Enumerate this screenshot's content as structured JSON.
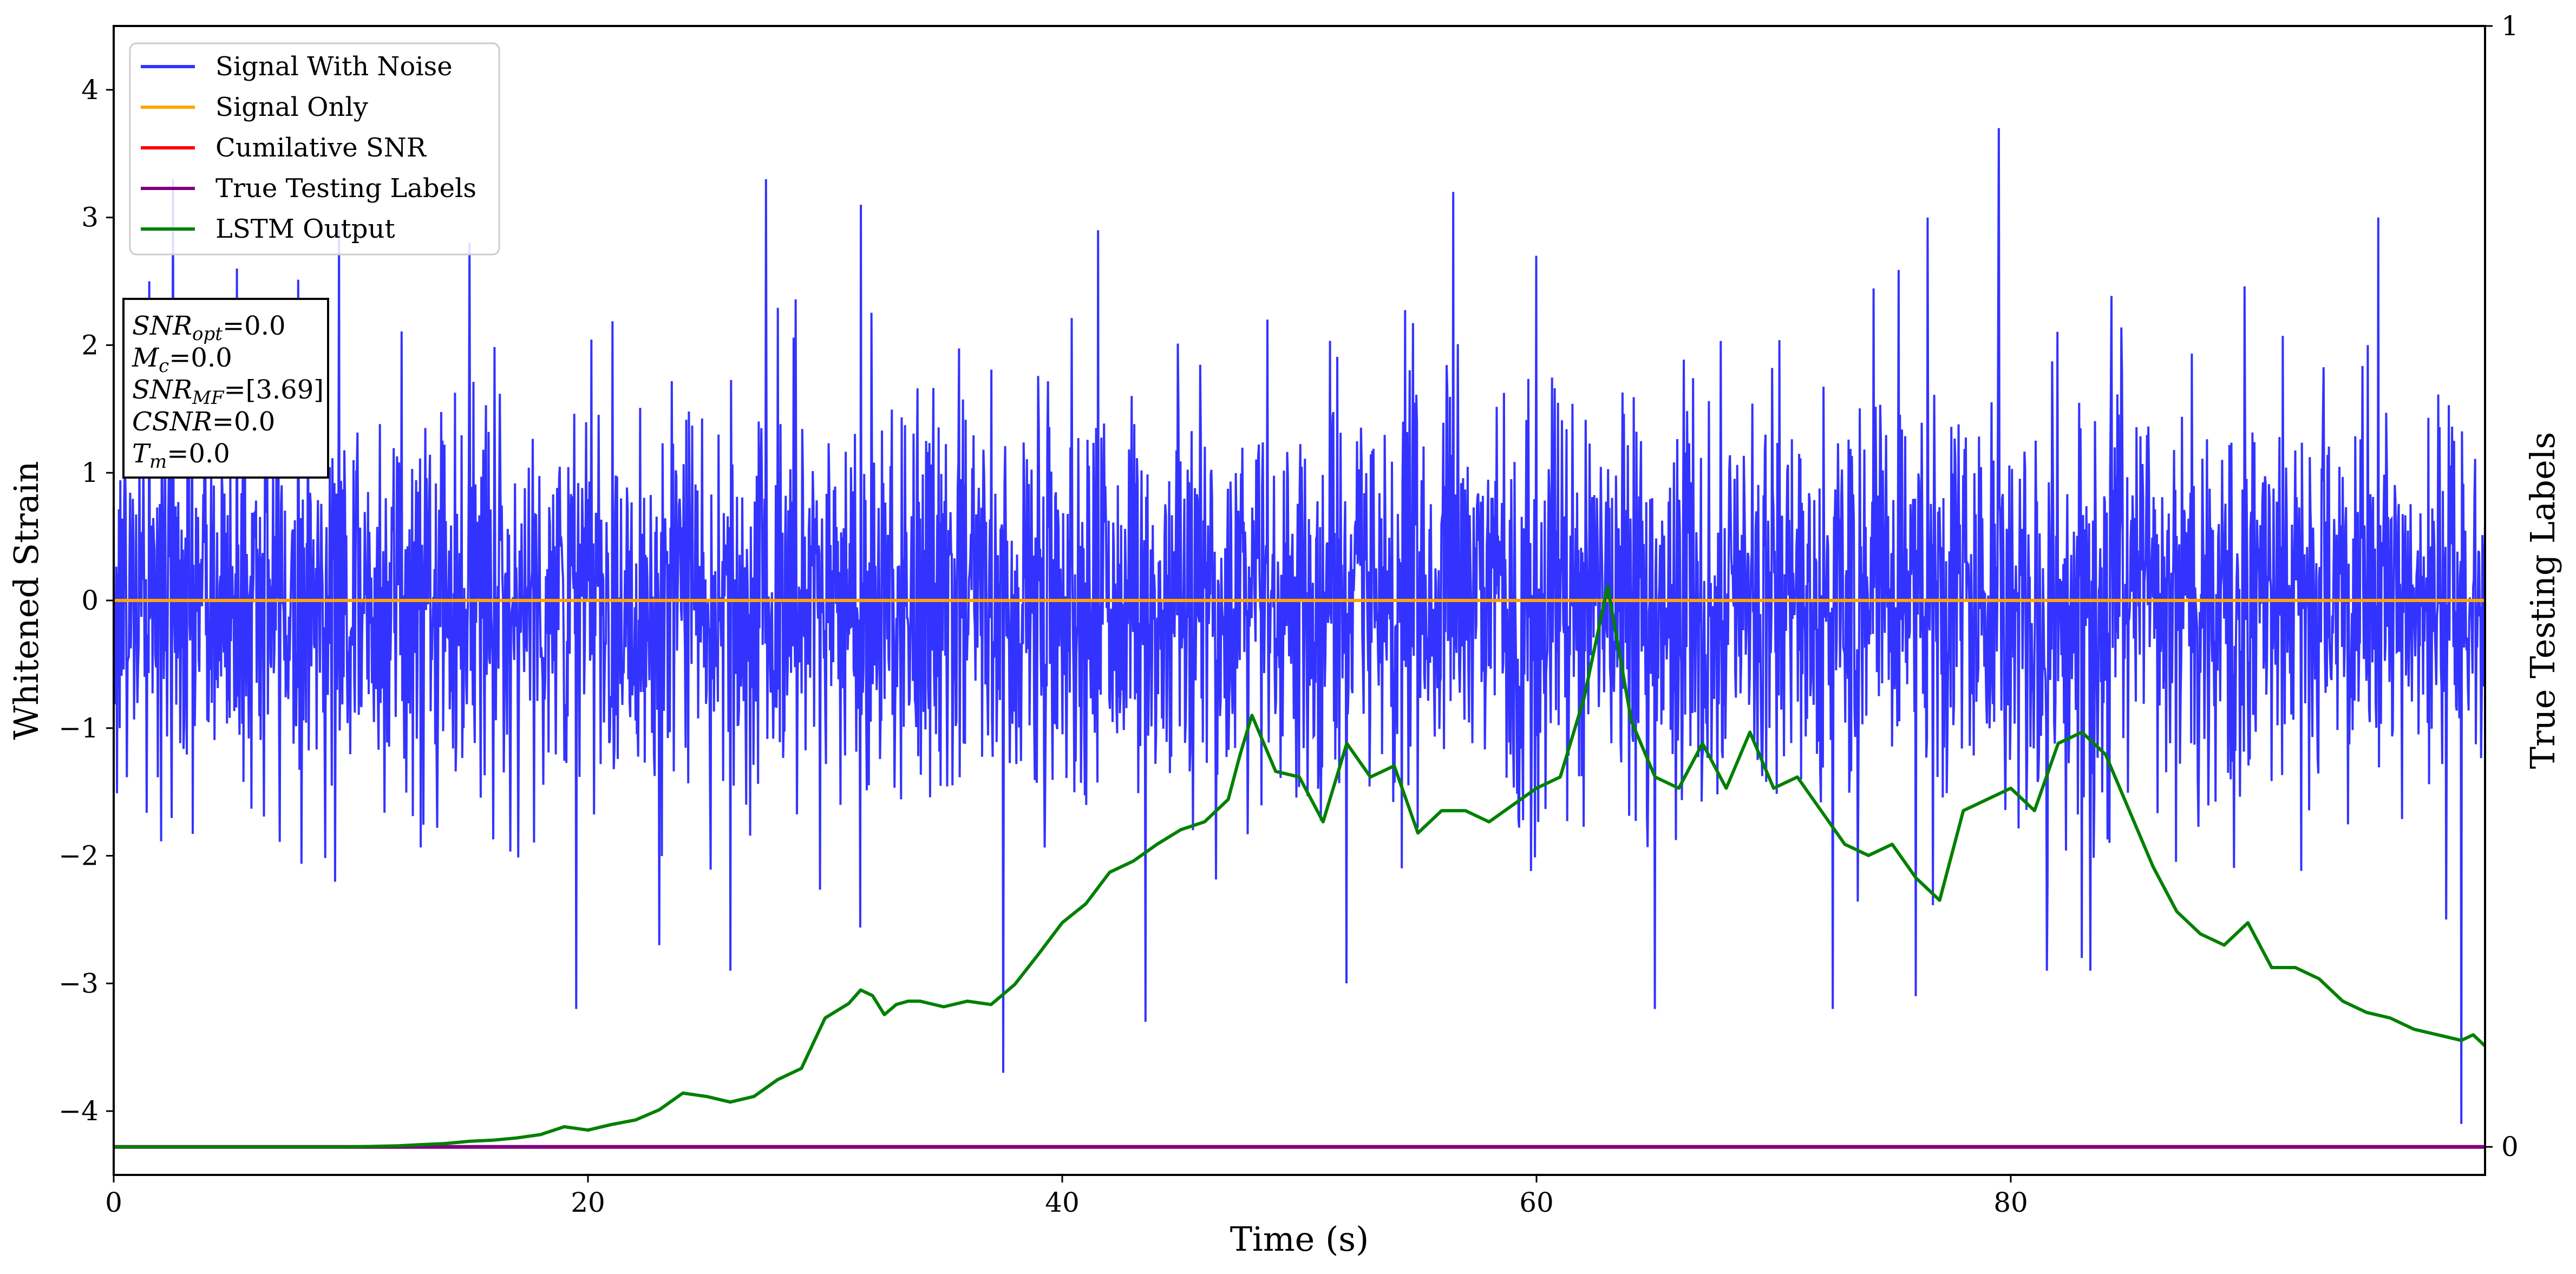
{
  "chart_data": {
    "type": "line",
    "xlabel": "Time (s)",
    "ylabel": "Whitened Strain",
    "y2label": "True Testing Labels",
    "xlim": [
      0,
      100
    ],
    "ylim": [
      -4.5,
      4.5
    ],
    "y2lim": [
      -0.025,
      1.0
    ],
    "xticks": [
      0,
      20,
      40,
      60,
      80
    ],
    "yticks": [
      -4,
      -3,
      -2,
      -1,
      0,
      1,
      2,
      3,
      4
    ],
    "y2ticks": [
      0,
      1
    ],
    "grid": false,
    "legend_position": "top-left",
    "colors": {
      "signal_with_noise": "#3333ff",
      "signal_only": "#ffa500",
      "cumulative_snr": "#ff0000",
      "true_labels": "#800080",
      "lstm_output": "#008000"
    },
    "legend": [
      "Signal With Noise",
      "Signal Only",
      "Cumilative SNR",
      "True Testing Labels",
      "LSTM Output"
    ],
    "stats_box": [
      {
        "base": "SNR",
        "sub": "opt",
        "value": "=0.0"
      },
      {
        "base": "M",
        "sub": "c",
        "value": "=0.0"
      },
      {
        "base": "SNR",
        "sub": "MF",
        "value": "=[3.69]"
      },
      {
        "base": "CSNR",
        "sub": "",
        "value": "=0.0"
      },
      {
        "base": "T",
        "sub": "m",
        "value": "=0.0"
      }
    ],
    "series": [
      {
        "name": "Signal With Noise",
        "axis": "left",
        "description": "dense whitened noise, approx. between -3.7 and 3.7",
        "x_range": [
          0,
          100
        ],
        "peak_max": 3.7,
        "peak_min": -4.1,
        "spikes": [
          [
            1.5,
            2.5
          ],
          [
            2.5,
            3.3
          ],
          [
            5.2,
            2.6
          ],
          [
            9.5,
            2.9
          ],
          [
            15,
            2.8
          ],
          [
            27.5,
            3.3
          ],
          [
            31.5,
            3.1
          ],
          [
            41.5,
            2.9
          ],
          [
            56.5,
            3.2
          ],
          [
            60,
            2.7
          ],
          [
            76.5,
            3.0
          ],
          [
            79.5,
            3.7
          ],
          [
            95.5,
            3.0
          ],
          [
            19.5,
            -3.2
          ],
          [
            23,
            -2.7
          ],
          [
            26,
            -2.9
          ],
          [
            37.5,
            -3.7
          ],
          [
            43.5,
            -3.3
          ],
          [
            52,
            -3.0
          ],
          [
            65,
            -3.2
          ],
          [
            72.5,
            -3.2
          ],
          [
            76,
            -3.1
          ],
          [
            83,
            -2.8
          ],
          [
            99,
            -4.1
          ]
        ]
      },
      {
        "name": "Signal Only",
        "axis": "left",
        "x": [
          0,
          100
        ],
        "y": [
          0,
          0
        ]
      },
      {
        "name": "True Testing Labels",
        "axis": "right",
        "x": [
          0,
          100
        ],
        "y": [
          0,
          0
        ]
      },
      {
        "name": "LSTM Output",
        "axis": "right",
        "x": [
          0,
          10,
          12,
          14,
          15,
          16,
          17,
          18,
          19,
          20,
          21,
          22,
          23,
          24,
          25,
          26,
          27,
          28,
          29,
          30,
          31,
          31.5,
          32,
          32.5,
          33,
          33.5,
          34,
          35,
          36,
          37,
          38,
          39,
          40,
          41,
          42,
          43,
          44,
          45,
          46,
          47,
          47.5,
          48,
          49,
          50,
          51,
          52,
          53,
          54,
          55,
          56,
          57,
          58,
          59,
          60,
          61,
          62,
          63,
          64,
          65,
          66,
          67,
          68,
          69,
          70,
          71,
          72,
          73,
          74,
          75,
          76,
          77,
          78,
          79,
          80,
          81,
          82,
          83,
          84,
          85,
          86,
          87,
          88,
          89,
          90,
          91,
          92,
          93,
          94,
          95,
          96,
          97,
          98,
          99,
          99.5,
          100
        ],
        "y": [
          0.0,
          0.0,
          0.001,
          0.003,
          0.005,
          0.006,
          0.008,
          0.011,
          0.018,
          0.015,
          0.02,
          0.024,
          0.033,
          0.048,
          0.045,
          0.04,
          0.045,
          0.06,
          0.07,
          0.115,
          0.128,
          0.14,
          0.135,
          0.118,
          0.127,
          0.13,
          0.13,
          0.125,
          0.13,
          0.127,
          0.145,
          0.172,
          0.2,
          0.217,
          0.245,
          0.255,
          0.27,
          0.283,
          0.29,
          0.31,
          0.35,
          0.385,
          0.335,
          0.33,
          0.29,
          0.36,
          0.33,
          0.34,
          0.28,
          0.3,
          0.3,
          0.29,
          0.305,
          0.32,
          0.33,
          0.4,
          0.5,
          0.38,
          0.33,
          0.32,
          0.36,
          0.32,
          0.37,
          0.32,
          0.33,
          0.3,
          0.27,
          0.26,
          0.27,
          0.24,
          0.22,
          0.3,
          0.31,
          0.32,
          0.3,
          0.36,
          0.37,
          0.35,
          0.3,
          0.25,
          0.21,
          0.19,
          0.18,
          0.2,
          0.16,
          0.16,
          0.15,
          0.13,
          0.12,
          0.115,
          0.105,
          0.1,
          0.095,
          0.1,
          0.09
        ]
      }
    ]
  }
}
